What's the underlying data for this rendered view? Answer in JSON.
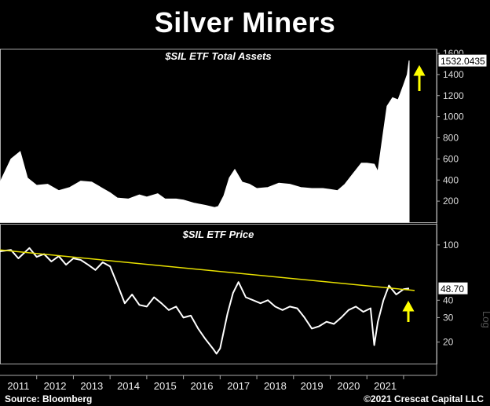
{
  "title": "Silver Miners",
  "source": "Source: Bloomberg",
  "copyright": "©2021 Crescat Capital LLC",
  "colors": {
    "background": "#000000",
    "series": "#ffffff",
    "trendline": "#e8e000",
    "arrow": "#ffff00",
    "grid": "#aaaaaa"
  },
  "chart_data": [
    {
      "type": "area",
      "title": "$SIL ETF Total Assets",
      "ylim": [
        0,
        1600
      ],
      "yticks": [
        200,
        400,
        600,
        800,
        1000,
        1200,
        1400,
        1600
      ],
      "last_value_label": "1532.0435",
      "x": [
        2010.0,
        2010.3,
        2010.55,
        2010.75,
        2011.0,
        2011.3,
        2011.6,
        2011.9,
        2012.2,
        2012.5,
        2012.8,
        2013.0,
        2013.2,
        2013.5,
        2013.8,
        2014.0,
        2014.3,
        2014.5,
        2014.8,
        2015.0,
        2015.3,
        2015.6,
        2015.85,
        2015.95,
        2016.1,
        2016.25,
        2016.4,
        2016.6,
        2016.8,
        2017.0,
        2017.3,
        2017.6,
        2017.9,
        2018.2,
        2018.5,
        2018.8,
        2019.0,
        2019.2,
        2019.4,
        2019.6,
        2019.85,
        2020.0,
        2020.2,
        2020.3,
        2020.45,
        2020.55,
        2020.7,
        2020.85,
        2021.0,
        2021.1,
        2021.15
      ],
      "values": [
        380,
        600,
        670,
        420,
        350,
        360,
        300,
        330,
        390,
        380,
        320,
        280,
        230,
        220,
        260,
        240,
        270,
        220,
        220,
        210,
        180,
        160,
        140,
        150,
        250,
        420,
        500,
        380,
        360,
        320,
        330,
        370,
        360,
        330,
        320,
        320,
        310,
        300,
        360,
        450,
        560,
        560,
        550,
        480,
        860,
        1100,
        1180,
        1160,
        1300,
        1400,
        1532
      ]
    },
    {
      "type": "line",
      "title": "$SIL ETF Price",
      "scale": "log",
      "ylim": [
        14,
        140
      ],
      "yticks": [
        20,
        30,
        40,
        48.7,
        100
      ],
      "last_value_label": "48.70",
      "x": [
        2010.0,
        2010.3,
        2010.5,
        2010.8,
        2011.0,
        2011.2,
        2011.4,
        2011.6,
        2011.8,
        2012.0,
        2012.2,
        2012.4,
        2012.6,
        2012.8,
        2013.0,
        2013.2,
        2013.4,
        2013.6,
        2013.8,
        2014.0,
        2014.2,
        2014.4,
        2014.6,
        2014.8,
        2015.0,
        2015.2,
        2015.4,
        2015.6,
        2015.8,
        2015.9,
        2016.0,
        2016.2,
        2016.35,
        2016.5,
        2016.7,
        2016.9,
        2017.1,
        2017.3,
        2017.5,
        2017.7,
        2017.9,
        2018.1,
        2018.3,
        2018.5,
        2018.7,
        2018.9,
        2019.1,
        2019.3,
        2019.5,
        2019.7,
        2019.9,
        2020.1,
        2020.2,
        2020.3,
        2020.45,
        2020.6,
        2020.8,
        2021.0,
        2021.15
      ],
      "values": [
        90,
        92,
        80,
        95,
        82,
        86,
        76,
        83,
        72,
        80,
        78,
        72,
        66,
        75,
        70,
        52,
        38,
        44,
        37,
        36,
        42,
        38,
        34,
        36,
        30,
        31,
        25,
        21,
        18,
        16.5,
        18,
        32,
        45,
        54,
        42,
        40,
        38,
        40,
        36,
        34,
        36,
        35,
        30,
        25,
        26,
        28,
        27,
        30,
        34,
        36,
        33,
        35,
        19,
        28,
        40,
        51,
        44,
        48,
        48.7
      ]
    }
  ],
  "trendline": {
    "start_x": 2010.0,
    "start_y": 92,
    "end_x": 2021.3,
    "end_y": 47
  },
  "x_axis_labels": [
    "2011",
    "2012",
    "2013",
    "2014",
    "2015",
    "2016",
    "2017",
    "2018",
    "2019",
    "2020",
    "2021"
  ]
}
